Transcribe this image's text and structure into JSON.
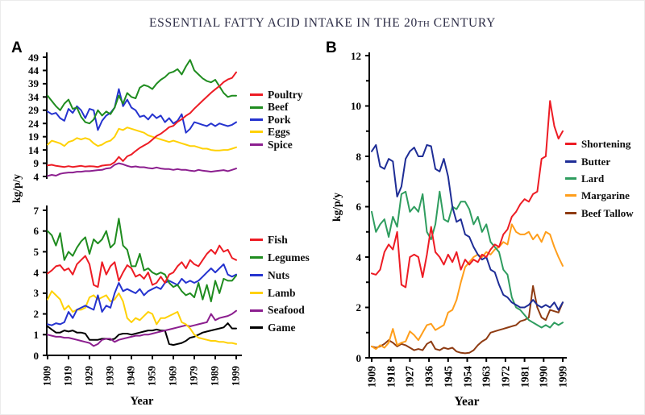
{
  "figure": {
    "title": {
      "pre": "ESSENTIAL FATTY ACID INTAKE IN THE 20",
      "sup": "TH",
      "post": " CENTURY"
    },
    "panel_a_label": "A",
    "panel_b_label": "B"
  },
  "years": [
    1909,
    1911,
    1913,
    1915,
    1917,
    1919,
    1921,
    1923,
    1925,
    1927,
    1929,
    1931,
    1933,
    1935,
    1937,
    1939,
    1941,
    1943,
    1945,
    1947,
    1949,
    1951,
    1953,
    1955,
    1957,
    1959,
    1961,
    1963,
    1965,
    1967,
    1969,
    1971,
    1973,
    1975,
    1977,
    1979,
    1981,
    1983,
    1985,
    1987,
    1989,
    1991,
    1993,
    1995,
    1997,
    1999
  ],
  "chart_data": [
    {
      "id": "panel-a-top",
      "type": "line",
      "panel": "A",
      "position": "top",
      "ylabel": "kg/p/y",
      "xlabel": "Year",
      "xlim": [
        1909,
        1999
      ],
      "ylim": [
        4,
        49
      ],
      "y_ticks": [
        4,
        9,
        14,
        19,
        24,
        29,
        34,
        39,
        44,
        49
      ],
      "x_tick_labels": [
        "1909",
        "1919",
        "1929",
        "1939",
        "1949",
        "1959",
        "1969",
        "1979",
        "1989",
        "1999"
      ],
      "legend_position": "right",
      "series": [
        {
          "name": "Poultry",
          "color": "#ed1c24",
          "values": [
            8.2,
            8.4,
            8.0,
            7.8,
            7.6,
            7.9,
            7.6,
            7.8,
            8.0,
            7.7,
            7.9,
            7.8,
            7.6,
            8.1,
            8.3,
            8.4,
            9.4,
            11.4,
            9.8,
            11.6,
            12.3,
            13.6,
            14.8,
            15.7,
            16.6,
            17.9,
            19.3,
            20.1,
            21.3,
            22.6,
            23.1,
            24.6,
            25.6,
            26.9,
            27.9,
            29.6,
            31.1,
            32.6,
            34.1,
            35.6,
            36.9,
            38.1,
            39.6,
            40.6,
            41.2,
            43.3
          ]
        },
        {
          "name": "Beef",
          "color": "#1f8c1f",
          "values": [
            34.5,
            32.5,
            30.5,
            29.0,
            31.5,
            33.0,
            29.5,
            30.0,
            26.5,
            24.5,
            24.0,
            25.5,
            29.0,
            27.0,
            28.5,
            27.5,
            30.0,
            34.5,
            31.5,
            35.5,
            34.0,
            33.5,
            37.5,
            38.5,
            38.0,
            37.0,
            39.0,
            40.5,
            41.5,
            43.0,
            43.5,
            44.5,
            42.5,
            45.5,
            48.0,
            44.0,
            42.5,
            41.0,
            40.0,
            39.5,
            40.5,
            38.0,
            35.5,
            34.0,
            34.5,
            34.5
          ]
        },
        {
          "name": "Pork",
          "color": "#2533cf",
          "values": [
            28.5,
            27.5,
            28.0,
            26.0,
            25.0,
            29.5,
            28.0,
            30.5,
            29.0,
            26.0,
            29.5,
            29.0,
            21.5,
            25.0,
            27.0,
            28.0,
            30.0,
            37.0,
            30.5,
            33.0,
            30.0,
            29.0,
            26.5,
            27.0,
            25.5,
            27.5,
            26.0,
            27.0,
            24.5,
            26.0,
            24.0,
            25.0,
            27.5,
            20.5,
            22.0,
            24.5,
            24.0,
            23.5,
            23.0,
            24.0,
            23.0,
            24.0,
            23.5,
            23.0,
            23.5,
            24.5
          ]
        },
        {
          "name": "Eggs",
          "color": "#ffd106",
          "values": [
            16.0,
            17.5,
            17.0,
            16.5,
            15.5,
            17.0,
            17.5,
            18.5,
            18.0,
            18.5,
            18.0,
            16.5,
            15.5,
            16.0,
            17.0,
            17.5,
            19.0,
            22.0,
            21.5,
            22.5,
            22.0,
            21.5,
            21.0,
            20.5,
            19.5,
            19.0,
            18.5,
            18.0,
            17.5,
            17.0,
            17.5,
            17.0,
            16.5,
            16.0,
            15.5,
            15.5,
            15.0,
            14.5,
            14.5,
            14.0,
            13.8,
            13.8,
            14.0,
            14.0,
            14.5,
            15.0
          ]
        },
        {
          "name": "Spice",
          "color": "#8c1f8f",
          "values": [
            4.2,
            4.6,
            4.3,
            5.0,
            5.3,
            5.5,
            5.5,
            5.8,
            5.8,
            6.0,
            6.0,
            6.2,
            6.4,
            6.5,
            7.0,
            7.2,
            8.4,
            9.0,
            8.6,
            8.0,
            7.6,
            7.8,
            7.5,
            7.5,
            7.2,
            7.0,
            7.4,
            7.0,
            6.8,
            6.8,
            6.5,
            6.8,
            6.5,
            6.5,
            6.2,
            6.0,
            6.5,
            6.2,
            6.0,
            5.8,
            6.0,
            6.2,
            6.4,
            6.0,
            6.5,
            7.0
          ]
        }
      ]
    },
    {
      "id": "panel-a-bottom",
      "type": "line",
      "panel": "A",
      "position": "bottom",
      "ylabel": "kg/p/y",
      "xlabel": "Year",
      "xlim": [
        1909,
        1999
      ],
      "ylim": [
        0,
        7
      ],
      "y_ticks": [
        0,
        1,
        2,
        3,
        4,
        5,
        6,
        7
      ],
      "x_tick_labels": [
        "1909",
        "1919",
        "1929",
        "1939",
        "1949",
        "1959",
        "1969",
        "1979",
        "1989",
        "1999"
      ],
      "legend_position": "right",
      "series": [
        {
          "name": "Fish",
          "color": "#ed1c24",
          "values": [
            3.95,
            4.1,
            4.3,
            4.35,
            4.1,
            4.2,
            3.9,
            4.4,
            4.6,
            4.8,
            4.4,
            3.4,
            3.3,
            4.5,
            3.9,
            4.3,
            4.5,
            3.6,
            4.0,
            4.35,
            4.2,
            3.8,
            3.9,
            3.7,
            4.0,
            3.4,
            3.5,
            3.8,
            3.5,
            3.9,
            4.0,
            4.3,
            4.5,
            4.2,
            4.6,
            4.4,
            4.3,
            4.6,
            4.9,
            5.1,
            4.9,
            5.3,
            5.0,
            5.1,
            4.7,
            4.6
          ]
        },
        {
          "name": "Legumes",
          "color": "#1f8c1f",
          "values": [
            6.0,
            5.8,
            5.3,
            5.9,
            4.6,
            5.0,
            4.8,
            5.2,
            5.5,
            5.7,
            4.9,
            5.6,
            5.4,
            5.6,
            6.0,
            5.2,
            5.4,
            6.6,
            5.3,
            5.1,
            4.3,
            4.3,
            4.9,
            4.1,
            4.2,
            4.0,
            3.9,
            4.0,
            3.9,
            3.5,
            3.3,
            3.4,
            3.1,
            2.9,
            3.0,
            2.8,
            3.5,
            2.7,
            3.4,
            2.6,
            3.6,
            3.0,
            3.7,
            3.6,
            3.6,
            3.85
          ]
        },
        {
          "name": "Nuts",
          "color": "#2533cf",
          "values": [
            1.5,
            1.45,
            1.55,
            1.5,
            1.6,
            2.1,
            1.8,
            2.2,
            2.3,
            2.4,
            2.3,
            2.2,
            2.9,
            2.1,
            2.4,
            2.3,
            3.0,
            3.5,
            3.1,
            3.2,
            3.1,
            3.0,
            3.2,
            2.9,
            3.1,
            3.2,
            3.3,
            3.2,
            3.5,
            3.6,
            3.5,
            3.4,
            3.7,
            3.5,
            3.6,
            3.5,
            3.6,
            3.8,
            4.0,
            4.2,
            4.0,
            4.2,
            4.4,
            3.9,
            3.8,
            3.9
          ]
        },
        {
          "name": "Lamb",
          "color": "#ffd106",
          "values": [
            2.7,
            3.1,
            2.9,
            2.7,
            2.2,
            2.4,
            2.1,
            2.2,
            2.2,
            2.3,
            2.8,
            2.9,
            2.7,
            2.8,
            2.9,
            2.6,
            2.7,
            3.0,
            2.6,
            1.8,
            1.6,
            1.8,
            1.7,
            1.9,
            2.1,
            2.0,
            1.5,
            1.8,
            1.8,
            1.9,
            2.0,
            2.1,
            1.6,
            1.5,
            1.3,
            1.0,
            0.85,
            0.8,
            0.75,
            0.7,
            0.7,
            0.65,
            0.65,
            0.6,
            0.6,
            0.55
          ]
        },
        {
          "name": "Seafood",
          "color": "#8c1f8f",
          "values": [
            1.0,
            0.95,
            0.9,
            0.9,
            0.85,
            0.85,
            0.8,
            0.75,
            0.7,
            0.65,
            0.6,
            0.45,
            0.55,
            0.75,
            0.8,
            0.8,
            0.65,
            0.75,
            0.8,
            0.85,
            0.9,
            0.95,
            0.95,
            1.0,
            1.0,
            1.05,
            1.1,
            1.15,
            1.2,
            1.25,
            1.3,
            1.35,
            1.4,
            1.45,
            1.4,
            1.45,
            1.5,
            1.55,
            1.6,
            2.0,
            1.7,
            1.8,
            1.85,
            1.9,
            2.0,
            2.15
          ]
        },
        {
          "name": "Game",
          "color": "#000000",
          "values": [
            1.4,
            1.25,
            1.1,
            1.1,
            1.2,
            1.15,
            1.2,
            1.1,
            1.1,
            1.05,
            0.75,
            0.75,
            0.75,
            0.8,
            0.8,
            0.75,
            0.8,
            1.0,
            1.05,
            1.05,
            1.0,
            1.05,
            1.1,
            1.15,
            1.2,
            1.2,
            1.25,
            1.2,
            1.2,
            0.55,
            0.5,
            0.55,
            0.6,
            0.7,
            0.85,
            0.9,
            1.0,
            1.1,
            1.15,
            1.2,
            1.25,
            1.3,
            1.35,
            1.55,
            1.3,
            1.3
          ]
        }
      ]
    },
    {
      "id": "panel-b",
      "type": "line",
      "panel": "B",
      "position": "full",
      "ylabel": "kg/p/y",
      "xlabel": "Year",
      "xlim": [
        1909,
        1999
      ],
      "ylim": [
        0,
        12
      ],
      "y_ticks": [
        0,
        2,
        4,
        6,
        8,
        10,
        12
      ],
      "y_minor_ticks": [
        1,
        3,
        5,
        7,
        9,
        11
      ],
      "x_tick_labels": [
        "1909",
        "1918",
        "1927",
        "1936",
        "1945",
        "1954",
        "1963",
        "1972",
        "1981",
        "1990",
        "1999"
      ],
      "legend_position": "right",
      "series": [
        {
          "name": "Shortening",
          "color": "#ed1c24",
          "values": [
            3.35,
            3.3,
            3.5,
            4.2,
            4.5,
            4.3,
            5.0,
            2.9,
            2.8,
            4.0,
            4.1,
            4.0,
            3.2,
            4.1,
            5.2,
            4.2,
            4.0,
            3.7,
            4.1,
            3.8,
            4.2,
            3.5,
            3.9,
            3.7,
            3.9,
            3.8,
            4.1,
            4.0,
            4.3,
            4.5,
            4.4,
            4.9,
            5.1,
            5.6,
            5.8,
            6.1,
            6.3,
            6.2,
            6.5,
            6.6,
            7.9,
            8.0,
            10.2,
            9.2,
            8.7,
            9.0
          ]
        },
        {
          "name": "Butter",
          "color": "#1e2d96",
          "values": [
            8.2,
            8.45,
            7.6,
            7.5,
            7.9,
            7.8,
            6.4,
            6.8,
            7.9,
            8.2,
            8.35,
            8.0,
            8.0,
            8.45,
            8.4,
            7.5,
            7.4,
            7.9,
            7.2,
            6.0,
            5.4,
            5.5,
            4.9,
            4.8,
            4.4,
            4.1,
            3.9,
            4.0,
            3.5,
            3.4,
            2.9,
            2.5,
            2.4,
            2.2,
            2.1,
            2.0,
            2.0,
            2.1,
            2.3,
            2.1,
            2.0,
            2.1,
            2.0,
            2.2,
            1.9,
            2.2
          ]
        },
        {
          "name": "Lard",
          "color": "#2f9d5f",
          "values": [
            5.8,
            5.0,
            5.3,
            5.5,
            4.8,
            5.6,
            5.2,
            6.5,
            6.6,
            5.8,
            6.0,
            5.8,
            6.5,
            5.0,
            4.7,
            5.3,
            6.6,
            5.5,
            5.4,
            6.0,
            5.9,
            6.2,
            6.2,
            5.9,
            5.3,
            5.6,
            5.0,
            5.3,
            4.6,
            4.4,
            4.2,
            3.5,
            3.3,
            2.4,
            2.0,
            1.9,
            1.7,
            1.5,
            1.4,
            1.3,
            1.2,
            1.3,
            1.2,
            1.4,
            1.3,
            1.4
          ]
        },
        {
          "name": "Margarine",
          "color": "#ff9e1b",
          "values": [
            0.45,
            0.35,
            0.5,
            0.4,
            0.6,
            1.15,
            0.5,
            0.6,
            0.65,
            1.05,
            0.9,
            0.7,
            1.0,
            1.3,
            1.35,
            1.1,
            1.2,
            1.3,
            1.8,
            1.9,
            2.3,
            3.0,
            3.6,
            3.8,
            4.0,
            4.1,
            4.0,
            4.2,
            4.1,
            4.3,
            4.4,
            4.6,
            4.5,
            5.3,
            5.0,
            4.9,
            4.9,
            5.0,
            4.7,
            4.9,
            4.6,
            5.0,
            4.9,
            4.4,
            4.0,
            3.65
          ]
        },
        {
          "name": "Beef Tallow",
          "color": "#8e3b12",
          "values": [
            0.45,
            0.4,
            0.45,
            0.55,
            0.7,
            0.6,
            0.45,
            0.55,
            0.5,
            0.4,
            0.3,
            0.35,
            0.3,
            0.55,
            0.65,
            0.35,
            0.3,
            0.4,
            0.35,
            0.4,
            0.25,
            0.2,
            0.18,
            0.2,
            0.3,
            0.5,
            0.65,
            0.75,
            1.0,
            1.05,
            1.1,
            1.15,
            1.2,
            1.25,
            1.3,
            1.45,
            1.5,
            1.6,
            2.85,
            2.0,
            1.6,
            1.5,
            1.9,
            1.85,
            1.8,
            2.2
          ]
        }
      ]
    }
  ]
}
